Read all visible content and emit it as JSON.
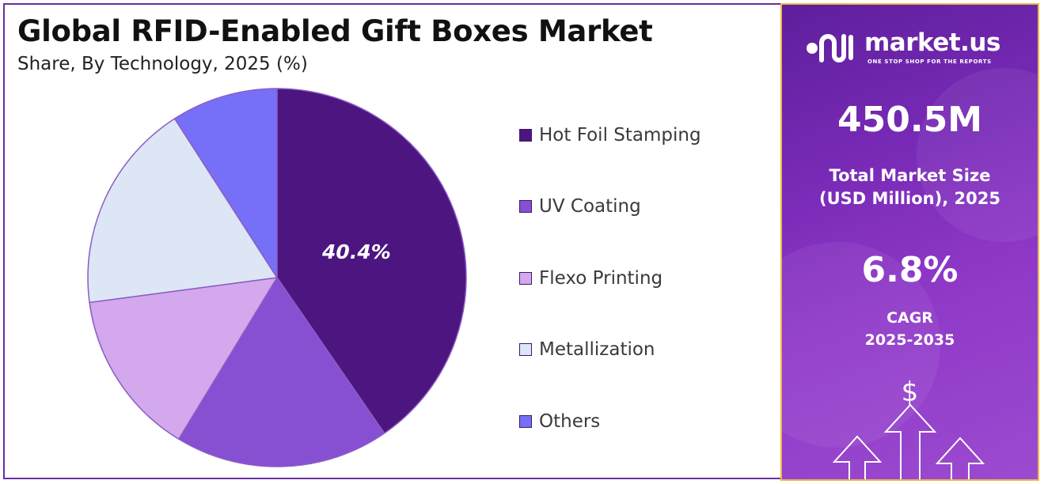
{
  "chart_data": {
    "type": "pie",
    "title": "Global RFID-Enabled Gift Boxes Market",
    "subtitle": "Share, By Technology, 2025 (%)",
    "categories": [
      "Hot Foil Stamping",
      "UV Coating",
      "Flexo Printing",
      "Metallization",
      "Others"
    ],
    "values": [
      40.4,
      18.3,
      14.2,
      18.0,
      9.1
    ],
    "colors": [
      "#4c1580",
      "#8750d2",
      "#d3a8ec",
      "#dde6f4",
      "#7670f8"
    ],
    "data_labels": [
      "40.4%",
      "",
      "",
      "",
      ""
    ],
    "legend_position": "right"
  },
  "side_panel": {
    "brand_name": "market.us",
    "brand_tagline": "ONE STOP SHOP FOR THE REPORTS",
    "market_size_value": "450.5M",
    "market_size_label_line1": "Total Market Size",
    "market_size_label_line2": "(USD Million), 2025",
    "cagr_value": "6.8%",
    "cagr_label_line1": "CAGR",
    "cagr_label_line2": "2025-2035",
    "currency_symbol": "$",
    "icons": [
      "market-us-logo-icon",
      "dollar-icon",
      "up-arrow-icon"
    ]
  },
  "colors": {
    "frame": "#6a2fa0",
    "panel_border": "#f0b648",
    "panel_start": "#5e1f9c",
    "panel_end": "#9b4bd0"
  }
}
